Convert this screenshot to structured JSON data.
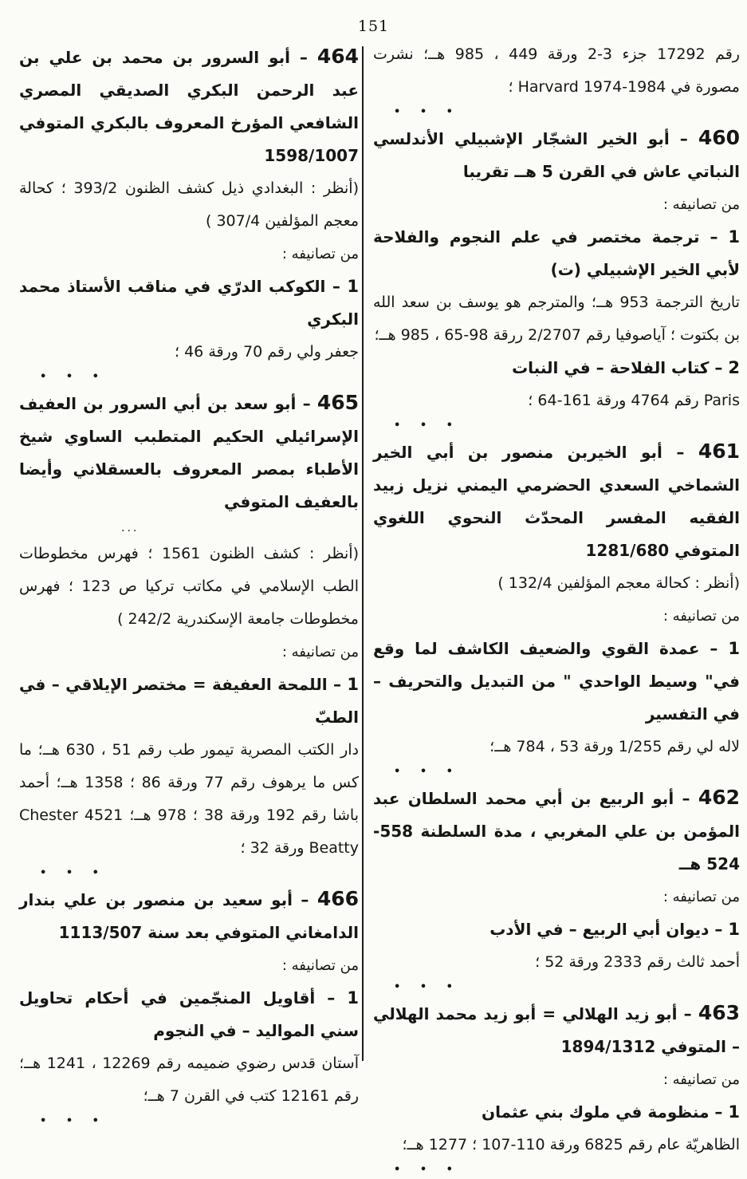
{
  "page": {
    "number": "151"
  },
  "colors": {
    "ink": "#161616",
    "paper": "#fbfbf8",
    "divider": "#1c1c1c"
  },
  "separator_dots": "• • •",
  "columns": {
    "right": {
      "blocks": [
        {
          "type": "note",
          "text": "رقم 17292 جزء 3-2 ورقة 449 ، 985 هــ؛ نشرت مصورة في 1984-1974 Harvard ؛"
        },
        {
          "type": "dots"
        },
        {
          "type": "header",
          "num": "460",
          "text": "– أبو الخير الشجّار الإشبيلي الأندلسي النباتي عاش في القرن 5 هــ تقريبا"
        },
        {
          "type": "label",
          "text": "من تصانيفه :"
        },
        {
          "type": "work",
          "num": "1",
          "text": "– ترجمة مختصر في علم النجوم والفلاحة لأبي الخير الإشبيلي (ت)"
        },
        {
          "type": "note",
          "text": "تاريخ الترجمة 953 هــ؛ والمترجم هو يوسف بن سعد الله بن بكتوت ؛ آياصوفيا رقم 2/2707 ررقة 98-65 ، 985 هــ؛"
        },
        {
          "type": "work",
          "num": "2",
          "text": "– كتاب الفلاحة – في النبات"
        },
        {
          "type": "note",
          "text": "Paris رقم 4764 ورقة 161-64 ؛"
        },
        {
          "type": "dots"
        },
        {
          "type": "header",
          "num": "461",
          "text": "– أبو الخيربن منصور بن أبي الخير الشماخي السعدي الحضرمي اليمني نزيل زبيد الفقيه المفسر المحدّث النحوي اللغوي المتوفي 1281/680"
        },
        {
          "type": "note",
          "text": "(أنظر : كحالة معجم المؤلفين 132/4 )"
        },
        {
          "type": "label",
          "text": "من تصانيفه :"
        },
        {
          "type": "work",
          "num": "1",
          "text": "– عمدة القوي والضعيف الكاشف لما وقع في\" وسيط الواحدي \" من التبديل والتحريف – في التفسير"
        },
        {
          "type": "note",
          "text": "لاله لي رقم 1/255 ورقة 53 ، 784 هــ؛"
        },
        {
          "type": "dots"
        },
        {
          "type": "header",
          "num": "462",
          "text": "– أبو الربيع بن أبي محمد السلطان عبد المؤمن بن علي المغربي ، مدة السلطنة 558-524 هــ"
        },
        {
          "type": "label",
          "text": "من تصانيفه :"
        },
        {
          "type": "work",
          "num": "1",
          "text": "– ديوان أبي الربيع – في الأدب"
        },
        {
          "type": "note",
          "text": "أحمد ثالث رقم 2333 ورقة 52 ؛"
        },
        {
          "type": "dots"
        },
        {
          "type": "header",
          "num": "463",
          "text": "– أبو زيد الهلالي = أبو زيد محمد الهلالي – المتوفي 1894/1312"
        },
        {
          "type": "label",
          "text": "من تصانيفه :"
        },
        {
          "type": "work",
          "num": "1",
          "text": "– منظومة في ملوك بني عثمان"
        },
        {
          "type": "note",
          "text": "الظاهريّة عام رقم 6825 ورقة 110-107 ؛ 1277 هــ؛"
        },
        {
          "type": "dots"
        }
      ]
    },
    "left": {
      "blocks": [
        {
          "type": "header",
          "num": "464",
          "text": "– أبو السرور بن محمد بن علي بن عبد الرحمن البكري الصديقي المصري الشافعي المؤرخ المعروف بالبكري المتوفي 1598/1007"
        },
        {
          "type": "note",
          "text": "(أنظر : البغدادي ذيل كشف الظنون 393/2 ؛ كحالة معجم المؤلفين 307/4 )"
        },
        {
          "type": "label",
          "text": "من تصانيفه :"
        },
        {
          "type": "work",
          "num": "1",
          "text": "– الكوكب الدرّي في مناقب الأستاذ محمد البكري"
        },
        {
          "type": "note",
          "text": "جعفر ولي رقم 70 ورقة 46 ؛"
        },
        {
          "type": "dots"
        },
        {
          "type": "header",
          "num": "465",
          "text": "– أبو سعد بن أبي السرور بن العفيف الإسرائيلي الحكيم المتطبب الساوي شيخ الأطباء بمصر المعروف بالعسقلاني وأيضا بالعفيف المتوفي"
        },
        {
          "type": "ellipsis",
          "text": "..."
        },
        {
          "type": "note",
          "text": "(أنظر : كشف الظنون 1561 ؛ فهرس مخطوطات الطب الإسلامي في مكاتب تركيا ص 123 ؛ فهرس مخطوطات جامعة الإسكندرية 242/2 )"
        },
        {
          "type": "label",
          "text": "من تصانيفه :"
        },
        {
          "type": "work",
          "num": "1",
          "text": "– اللمحة العفيفة = مختصر الإيلاقي – في الطبّ"
        },
        {
          "type": "note",
          "text": "دار الكتب المصرية تيمور طب رقم 51 ، 630 هــ؛ ما كس ما يرهوف رقم 77 ورقة 86 ؛ 1358 هــ؛ أحمد باشا رقم 192 ورقة 38 ؛ 978 هــ؛ 4521 Chester Beatty ورقة 32 ؛"
        },
        {
          "type": "dots"
        },
        {
          "type": "header",
          "num": "466",
          "text": "– أبو سعيد بن منصور بن علي بندار الدامغاني المتوفي بعد سنة 1113/507"
        },
        {
          "type": "label",
          "text": "من تصانيفه :"
        },
        {
          "type": "work",
          "num": "1",
          "text": "– أقاويل المنجّمين في أحكام تحاويل سني المواليد – في النجوم"
        },
        {
          "type": "note",
          "text": "آستان قدس رضوي ضميمه رقم 12269 ، 1241 هــ؛ رقم 12161 كتب في القرن 7 هــ؛"
        },
        {
          "type": "dots"
        }
      ]
    }
  }
}
